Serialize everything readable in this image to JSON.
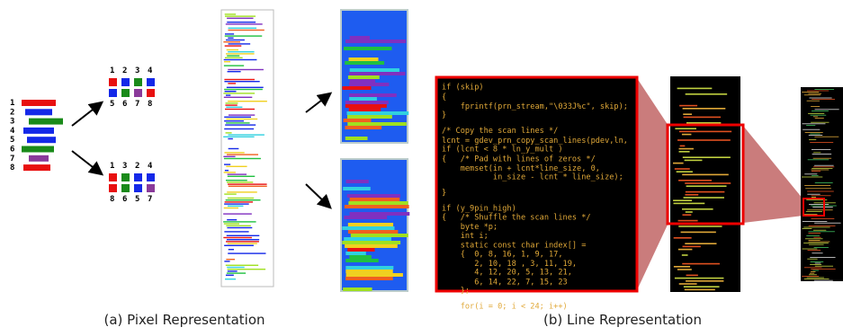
{
  "left": {
    "row_labels": [
      "1",
      "2",
      "3",
      "4",
      "5",
      "6",
      "7",
      "8"
    ],
    "top_grid": {
      "top_labels": [
        "1",
        "2",
        "3",
        "4"
      ],
      "bottom_labels": [
        "5",
        "6",
        "7",
        "8"
      ]
    },
    "bottom_grid": {
      "top_labels": [
        "1",
        "3",
        "2",
        "4"
      ],
      "bottom_labels": [
        "8",
        "6",
        "5",
        "7"
      ]
    }
  },
  "code_lines": [
    "if (skip)",
    "{",
    "    fprintf(prn_stream,\"\\033J%c\", skip);",
    "}",
    "/* Copy the scan lines */",
    "lcnt = gdev_prn_copy_scan_lines(pdev,ln,",
    "if (lcnt < 8 * ln_y_mult )",
    "{   /* Pad with lines of zeros */",
    "    memset(in + lcnt*line_size, 0,",
    "           in_size - lcnt * line_size);",
    "}",
    "if (y_9pin_high)",
    "{   /* Shuffle the scan lines */",
    "    byte *p;",
    "    int i;",
    "    static const char index[] =",
    "    {  0, 8, 16, 1, 9, 17,",
    "       2, 10, 18 , 3, 11, 19,",
    "       4, 12, 20, 5, 13, 21,",
    "       6, 14, 22, 7, 15, 23",
    "    };",
    "    for(i = 0; i < 24; i++)"
  ],
  "captions": [
    "(a) Pixel Representation",
    "(b) Line Representation"
  ]
}
